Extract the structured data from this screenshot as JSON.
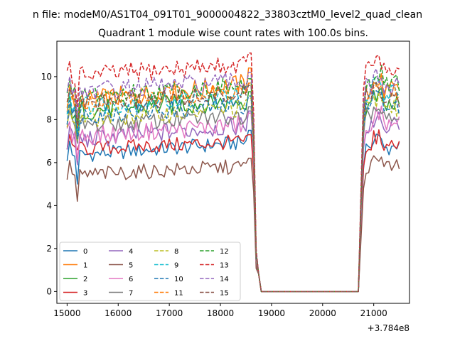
{
  "chart_data": {
    "type": "line",
    "suptitle": "n file: modeM0/AS1T04_091T01_9000004822_33803cztM0_level2_quad_clean",
    "title": "Quadrant 1 module wise count rates with 100.0s bins.",
    "xlabel": "",
    "ylabel": "",
    "x_offset_label": "+3.784e8",
    "xlim": [
      14800,
      21700
    ],
    "ylim": [
      -0.55,
      11.65
    ],
    "xticks": [
      15000,
      16000,
      17000,
      18000,
      19000,
      20000,
      21000
    ],
    "xtick_labels": [
      "15000",
      "16000",
      "17000",
      "18000",
      "19000",
      "20000",
      "21000"
    ],
    "yticks": [
      0,
      2,
      4,
      6,
      8,
      10
    ],
    "ytick_labels": [
      "0",
      "2",
      "4",
      "6",
      "8",
      "10"
    ],
    "grid": false,
    "legend_position": "lower-left",
    "legend_columns": 4,
    "x_segments": [
      {
        "start": 15000,
        "end": 18600,
        "step": 50
      },
      {
        "start": 18650,
        "end": 20700,
        "step": 50
      },
      {
        "start": 20800,
        "end": 21500,
        "step": 50
      }
    ],
    "series": [
      {
        "name": "0",
        "color": "#1f77b4",
        "dash": "solid",
        "base": 6.3,
        "spread": 0.35,
        "dip": 5.0,
        "peak": 7.5,
        "late": 6.3
      },
      {
        "name": "1",
        "color": "#ff7f0e",
        "dash": "solid",
        "base": 8.8,
        "spread": 0.5,
        "dip": 7.8,
        "peak": 10.4,
        "late": 8.9
      },
      {
        "name": "2",
        "color": "#2ca02c",
        "dash": "solid",
        "base": 8.4,
        "spread": 0.5,
        "dip": 7.2,
        "peak": 9.3,
        "late": 8.2
      },
      {
        "name": "3",
        "color": "#d62728",
        "dash": "solid",
        "base": 6.6,
        "spread": 0.35,
        "dip": 6.6,
        "peak": 7.3,
        "late": 6.4
      },
      {
        "name": "4",
        "color": "#9467bd",
        "dash": "solid",
        "base": 7.0,
        "spread": 0.45,
        "dip": 5.9,
        "peak": 8.4,
        "late": 7.3
      },
      {
        "name": "5",
        "color": "#8c564b",
        "dash": "solid",
        "base": 5.4,
        "spread": 0.35,
        "dip": 4.2,
        "peak": 6.2,
        "late": 5.4
      },
      {
        "name": "6",
        "color": "#e377c2",
        "dash": "solid",
        "base": 7.2,
        "spread": 0.45,
        "dip": 6.1,
        "peak": 8.3,
        "late": 7.4
      },
      {
        "name": "7",
        "color": "#7f7f7f",
        "dash": "solid",
        "base": 7.7,
        "spread": 0.4,
        "dip": 6.9,
        "peak": 8.6,
        "late": 7.8
      },
      {
        "name": "8",
        "color": "#bcbd22",
        "dash": "dashed",
        "base": 8.0,
        "spread": 0.45,
        "dip": 7.0,
        "peak": 9.0,
        "late": 8.2
      },
      {
        "name": "9",
        "color": "#17becf",
        "dash": "dashed",
        "base": 8.6,
        "spread": 0.45,
        "dip": 7.3,
        "peak": 9.6,
        "late": 8.8
      },
      {
        "name": "10",
        "color": "#1f77b4",
        "dash": "dashed",
        "base": 8.2,
        "spread": 0.45,
        "dip": 7.1,
        "peak": 9.1,
        "late": 8.2
      },
      {
        "name": "11",
        "color": "#ff7f0e",
        "dash": "dashed",
        "base": 8.9,
        "spread": 0.45,
        "dip": 7.7,
        "peak": 9.7,
        "late": 8.9
      },
      {
        "name": "12",
        "color": "#2ca02c",
        "dash": "dashed",
        "base": 9.1,
        "spread": 0.45,
        "dip": 7.9,
        "peak": 9.9,
        "late": 9.3
      },
      {
        "name": "13",
        "color": "#d62728",
        "dash": "dashed",
        "base": 10.0,
        "spread": 0.45,
        "dip": 8.6,
        "peak": 11.1,
        "late": 10.0
      },
      {
        "name": "14",
        "color": "#9467bd",
        "dash": "dashed",
        "base": 9.3,
        "spread": 0.45,
        "dip": 8.1,
        "peak": 10.2,
        "late": 9.2
      },
      {
        "name": "15",
        "color": "#8c564b",
        "dash": "dashed",
        "base": 8.7,
        "spread": 0.45,
        "dip": 7.6,
        "peak": 9.6,
        "late": 8.6
      }
    ]
  }
}
